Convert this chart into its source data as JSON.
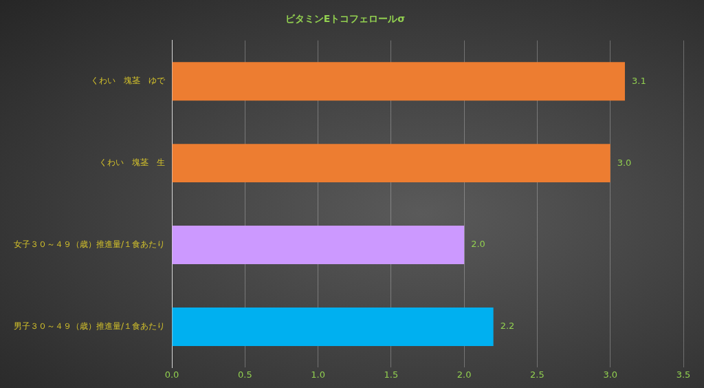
{
  "chart_data": {
    "type": "bar",
    "orientation": "horizontal",
    "title": "ビタミンEトコフェロールσ",
    "categories": [
      "くわい　塊茎　ゆで",
      "くわい　塊茎　生",
      "女子３０～４９（歳）推進量/１食あたり",
      "男子３０～４９（歳）推進量/１食あたり"
    ],
    "values": [
      3.1,
      3.0,
      2.0,
      2.2
    ],
    "colors": [
      "#ed7d31",
      "#ed7d31",
      "#cc99ff",
      "#00b0f0"
    ],
    "xlim": [
      0,
      3.5
    ],
    "xticks": [
      {
        "value": 0,
        "label": "0.0"
      },
      {
        "value": 0.5,
        "label": "0.5"
      },
      {
        "value": 1,
        "label": "1.0"
      },
      {
        "value": 1.5,
        "label": "1.5"
      },
      {
        "value": 2,
        "label": "2.0"
      },
      {
        "value": 2.5,
        "label": "2.5"
      },
      {
        "value": 3,
        "label": "3.0"
      },
      {
        "value": 3.5,
        "label": "3.5"
      }
    ],
    "value_labels": [
      "3.1",
      "3.0",
      "2.0",
      "2.2"
    ],
    "grid": "x",
    "legend": false
  }
}
